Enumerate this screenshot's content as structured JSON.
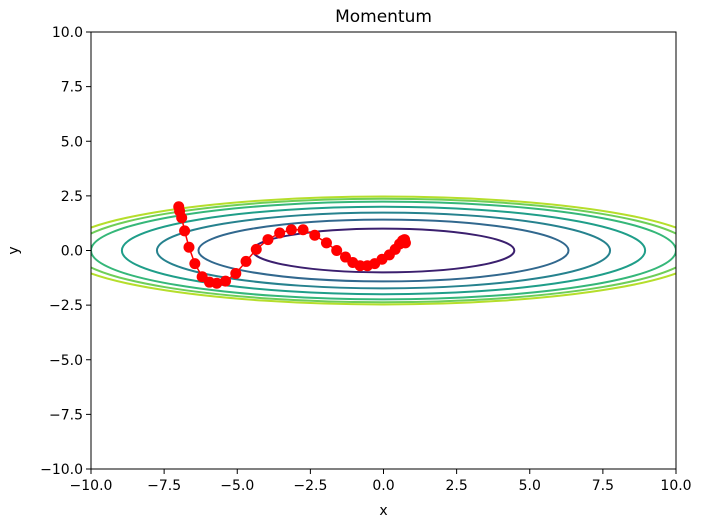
{
  "chart_data": {
    "type": "line",
    "title": "Momentum",
    "xlabel": "x",
    "ylabel": "y",
    "xlim": [
      -10,
      10
    ],
    "ylim": [
      -10,
      10
    ],
    "grid": false,
    "x_ticks": [
      -10,
      -7.5,
      -5,
      -2.5,
      0,
      2.5,
      5,
      7.5,
      10
    ],
    "y_ticks": [
      -10,
      -7.5,
      -5,
      -2.5,
      0,
      2.5,
      5,
      7.5,
      10
    ],
    "x_tick_labels": [
      "−10.0",
      "−7.5",
      "−5.0",
      "−2.5",
      "0.0",
      "2.5",
      "5.0",
      "7.5",
      "10.0"
    ],
    "y_tick_labels": [
      "−10.0",
      "−7.5",
      "−5.0",
      "−2.5",
      "0.0",
      "2.5",
      "5.0",
      "7.5",
      "10.0"
    ],
    "contours": {
      "function": "f(x,y) = x^2/20 + y^2",
      "levels": [
        {
          "level": 1.0,
          "color": "#3b1f6e"
        },
        {
          "level": 2.0,
          "color": "#31688e"
        },
        {
          "level": 3.0,
          "color": "#26828e"
        },
        {
          "level": 4.0,
          "color": "#1f9e89"
        },
        {
          "level": 5.0,
          "color": "#35b779"
        },
        {
          "level": 5.6,
          "color": "#6ece58"
        },
        {
          "level": 6.1,
          "color": "#b5de2b"
        }
      ]
    },
    "series": [
      {
        "color": "#ff0000",
        "x": [
          -7.0,
          -6.97,
          -6.9,
          -6.8,
          -6.65,
          -6.45,
          -6.2,
          -5.95,
          -5.7,
          -5.4,
          -5.05,
          -4.7,
          -4.35,
          -3.95,
          -3.55,
          -3.15,
          -2.75,
          -2.35,
          -1.95,
          -1.6,
          -1.3,
          -1.05,
          -0.8,
          -0.55,
          -0.3,
          -0.05,
          0.2,
          0.4,
          0.55,
          0.65,
          0.72,
          0.75
        ],
        "y": [
          2.0,
          1.8,
          1.5,
          0.9,
          0.15,
          -0.6,
          -1.2,
          -1.45,
          -1.5,
          -1.4,
          -1.05,
          -0.5,
          0.05,
          0.5,
          0.8,
          0.95,
          0.95,
          0.7,
          0.35,
          0.0,
          -0.3,
          -0.55,
          -0.7,
          -0.7,
          -0.6,
          -0.4,
          -0.2,
          0.05,
          0.3,
          0.45,
          0.5,
          0.35
        ]
      }
    ]
  }
}
